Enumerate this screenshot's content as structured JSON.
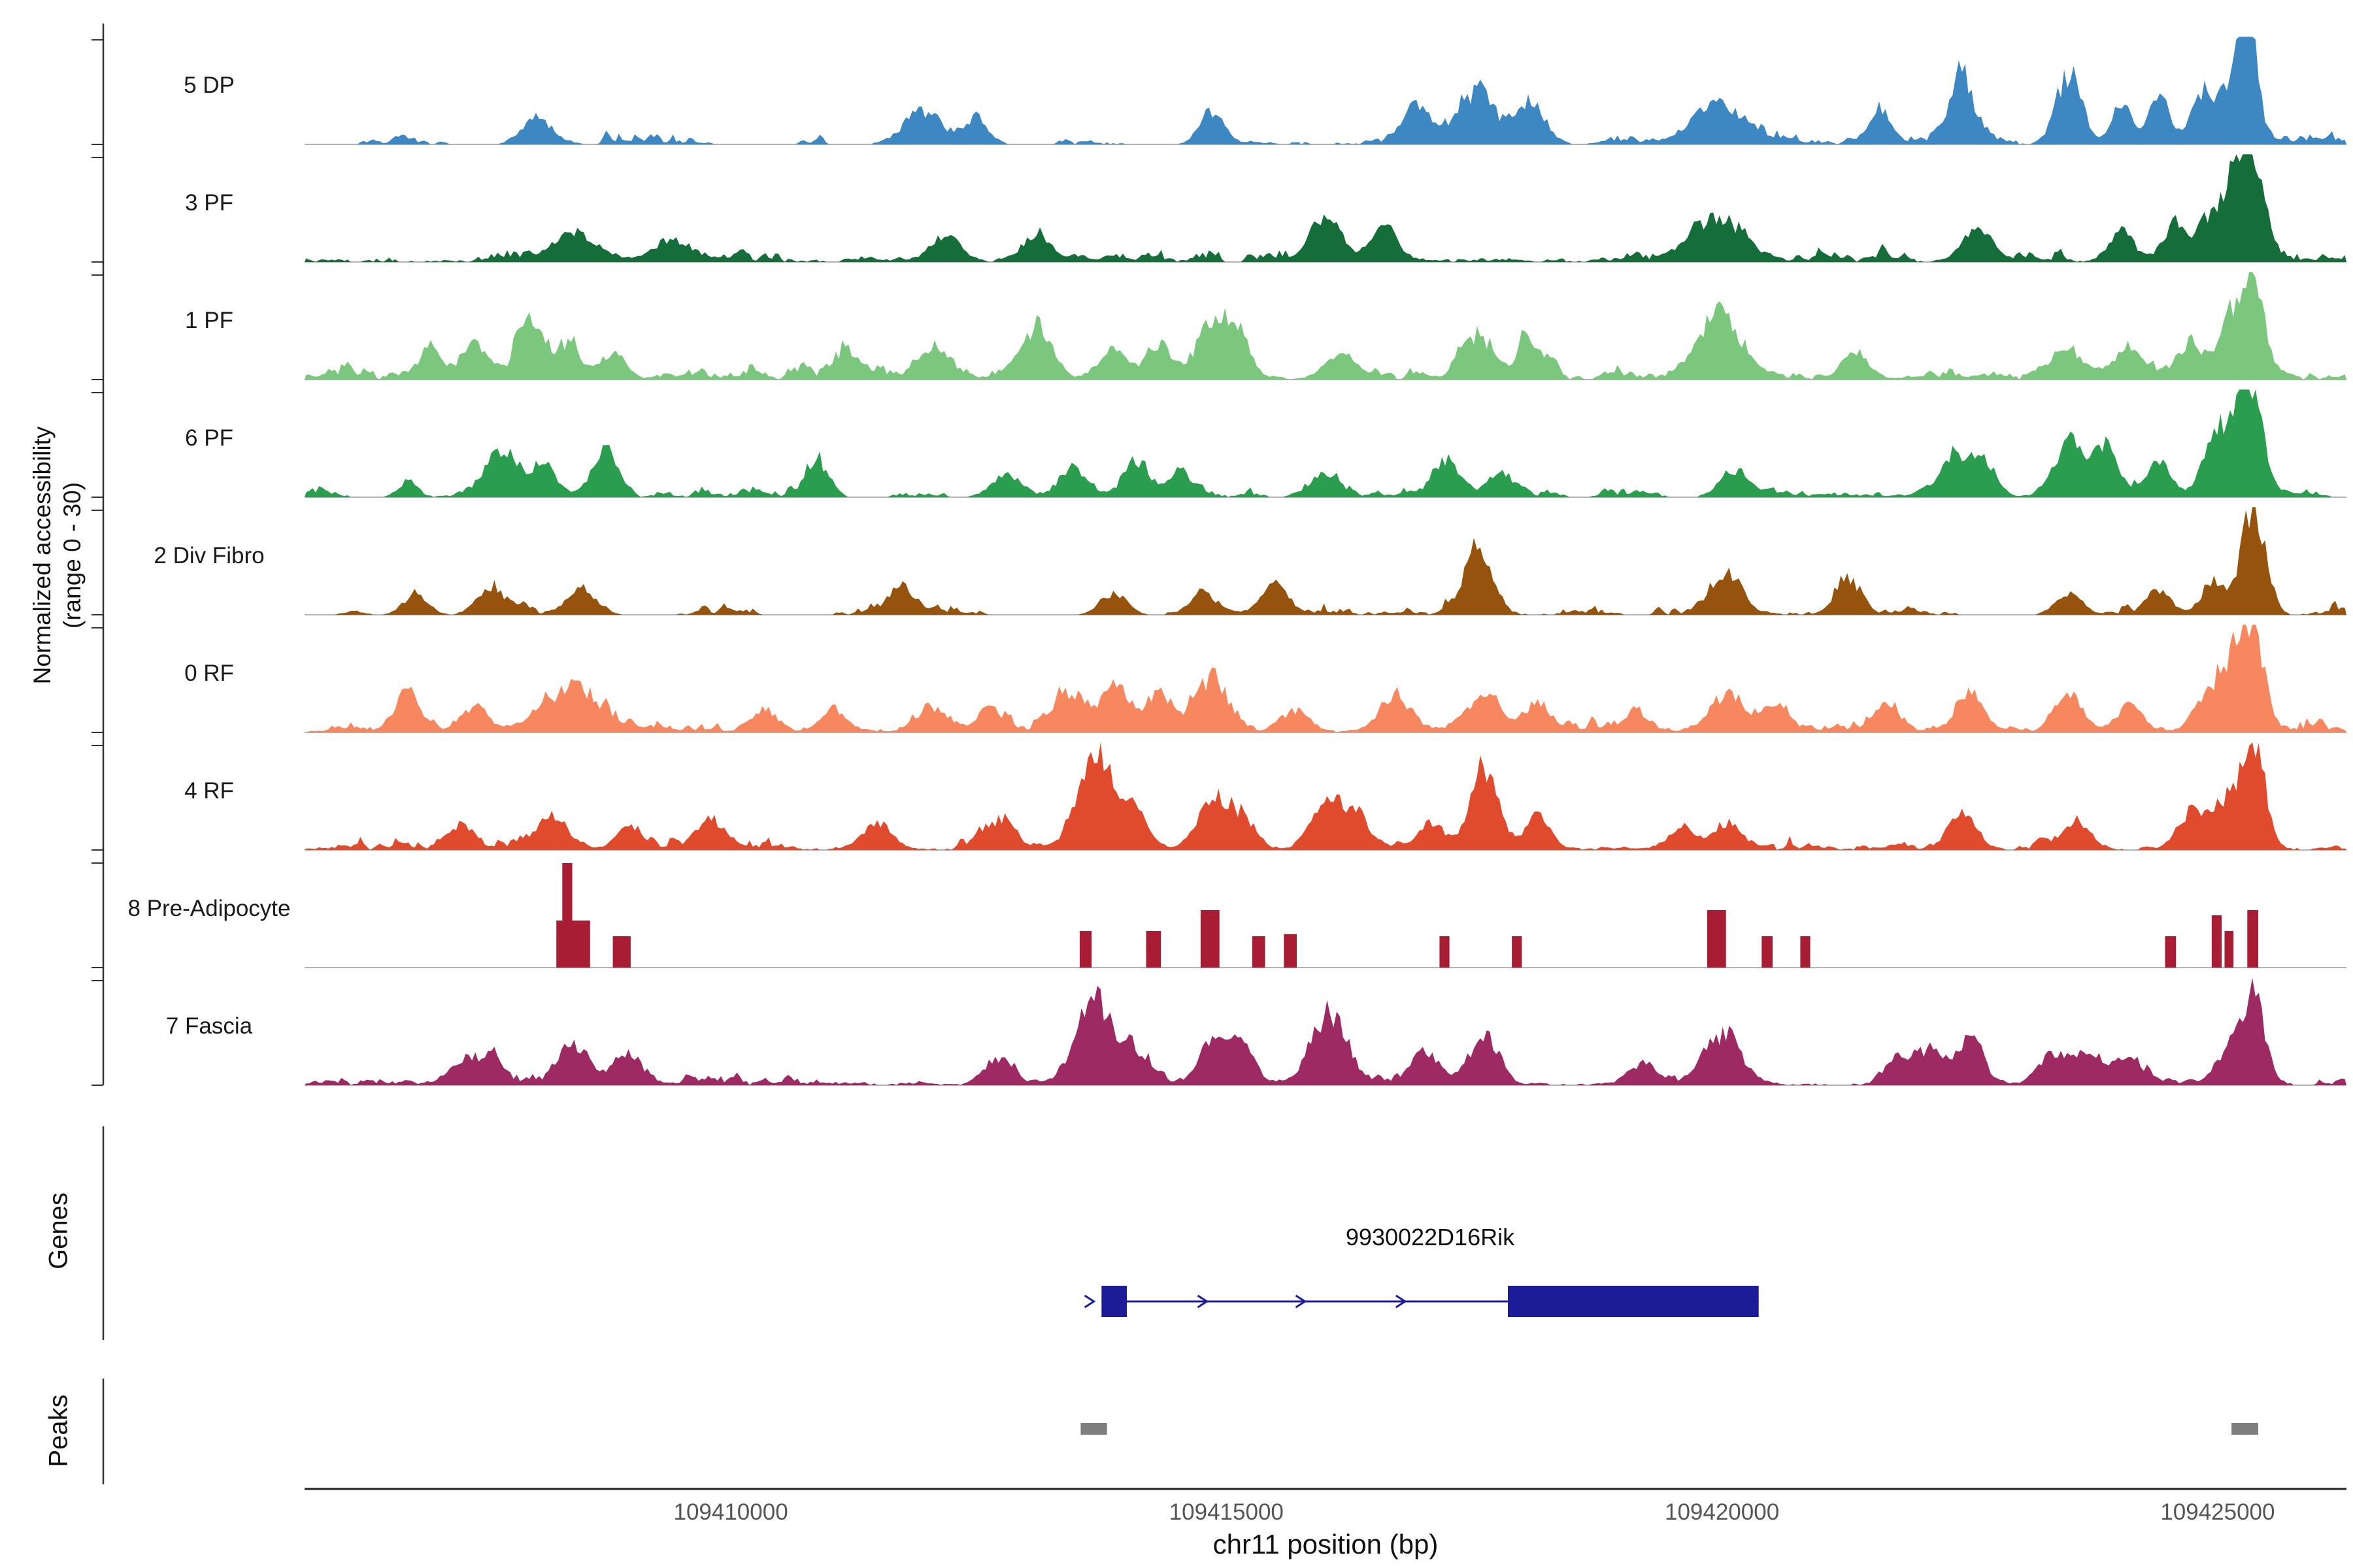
{
  "y_axis": {
    "title_line1": "Normalized accessibility",
    "title_line2": "(range 0 - 30)"
  },
  "sections": {
    "genes_label": "Genes",
    "peaks_label": "Peaks"
  },
  "x_axis": {
    "title": "chr11 position (bp)",
    "ticks": [
      {
        "pos": 109410000,
        "label": "109410000"
      },
      {
        "pos": 109415000,
        "label": "109415000"
      },
      {
        "pos": 109420000,
        "label": "109420000"
      },
      {
        "pos": 109425000,
        "label": "109425000"
      }
    ]
  },
  "chart_data": {
    "type": "area",
    "subtype": "genome-accessibility-tracks",
    "region": {
      "chrom": "chr11",
      "start": 109405700,
      "end": 109426300
    },
    "value_range": [
      0,
      30
    ],
    "tracks": [
      {
        "label": "5 DP",
        "color": "#3d87c2",
        "style": "area",
        "noise": 0.12,
        "dense": false,
        "peaks": [
          [
            109408040,
            0.25,
            150
          ],
          [
            109411940,
            0.3,
            200
          ],
          [
            109412480,
            0.25,
            120
          ],
          [
            109414850,
            0.3,
            120
          ],
          [
            109416920,
            0.32,
            150
          ],
          [
            109417530,
            0.45,
            180
          ],
          [
            109418060,
            0.4,
            150
          ],
          [
            109419930,
            0.38,
            250
          ],
          [
            109421580,
            0.25,
            120
          ],
          [
            109422420,
            0.6,
            120
          ],
          [
            109423500,
            0.65,
            130
          ],
          [
            109424030,
            0.35,
            100
          ],
          [
            109424410,
            0.4,
            100
          ],
          [
            109424870,
            0.5,
            120
          ],
          [
            109425180,
            0.7,
            100
          ],
          [
            109425330,
            0.95,
            90
          ]
        ]
      },
      {
        "label": "3 PF",
        "color": "#156d39",
        "style": "area",
        "noise": 0.14,
        "dense": true,
        "peaks": [
          [
            109408420,
            0.25,
            250
          ],
          [
            109409420,
            0.2,
            200
          ],
          [
            109412170,
            0.22,
            150
          ],
          [
            109413090,
            0.25,
            150
          ],
          [
            109416000,
            0.35,
            150
          ],
          [
            109416610,
            0.3,
            130
          ],
          [
            109419980,
            0.4,
            250
          ],
          [
            109422580,
            0.3,
            150
          ],
          [
            109424030,
            0.28,
            120
          ],
          [
            109424570,
            0.35,
            120
          ],
          [
            109424950,
            0.45,
            120
          ],
          [
            109425180,
            0.6,
            100
          ],
          [
            109425360,
            1.0,
            110
          ]
        ]
      },
      {
        "label": "1 PF",
        "color": "#7bc77d",
        "style": "area",
        "noise": 0.15,
        "dense": true,
        "peaks": [
          [
            109406970,
            0.25,
            120
          ],
          [
            109407430,
            0.3,
            120
          ],
          [
            109407970,
            0.42,
            150
          ],
          [
            109408350,
            0.3,
            120
          ],
          [
            109408810,
            0.25,
            120
          ],
          [
            109411180,
            0.2,
            150
          ],
          [
            109412020,
            0.25,
            150
          ],
          [
            109413090,
            0.45,
            150
          ],
          [
            109413860,
            0.3,
            130
          ],
          [
            109414320,
            0.3,
            130
          ],
          [
            109414850,
            0.5,
            150
          ],
          [
            109415110,
            0.4,
            120
          ],
          [
            109416150,
            0.25,
            150
          ],
          [
            109417530,
            0.4,
            150
          ],
          [
            109418060,
            0.3,
            130
          ],
          [
            109419980,
            0.6,
            220
          ],
          [
            109421350,
            0.25,
            130
          ],
          [
            109423500,
            0.25,
            150
          ],
          [
            109424110,
            0.3,
            120
          ],
          [
            109424720,
            0.35,
            120
          ],
          [
            109425100,
            0.5,
            110
          ],
          [
            109425360,
            0.95,
            110
          ]
        ]
      },
      {
        "label": "6 PF",
        "color": "#2a9d4e",
        "style": "area",
        "noise": 0.1,
        "dense": false,
        "peaks": [
          [
            109406740,
            0.15,
            100
          ],
          [
            109407690,
            0.45,
            150
          ],
          [
            109408120,
            0.3,
            120
          ],
          [
            109408730,
            0.4,
            130
          ],
          [
            109410870,
            0.3,
            120
          ],
          [
            109412780,
            0.2,
            150
          ],
          [
            109413470,
            0.25,
            130
          ],
          [
            109414090,
            0.35,
            130
          ],
          [
            109414540,
            0.25,
            120
          ],
          [
            109416000,
            0.2,
            150
          ],
          [
            109417220,
            0.3,
            130
          ],
          [
            109417760,
            0.2,
            120
          ],
          [
            109420130,
            0.2,
            150
          ],
          [
            109422350,
            0.4,
            130
          ],
          [
            109422650,
            0.35,
            120
          ],
          [
            109423500,
            0.5,
            140
          ],
          [
            109423880,
            0.45,
            130
          ],
          [
            109424410,
            0.3,
            120
          ],
          [
            109424950,
            0.5,
            120
          ],
          [
            109425180,
            0.6,
            100
          ],
          [
            109425360,
            0.85,
            110
          ]
        ]
      },
      {
        "label": "2 Div Fibro",
        "color": "#95530e",
        "style": "area",
        "noise": 0.12,
        "dense": false,
        "peaks": [
          [
            109406820,
            0.2,
            120
          ],
          [
            109407580,
            0.2,
            150
          ],
          [
            109408500,
            0.25,
            150
          ],
          [
            109411710,
            0.2,
            150
          ],
          [
            109413860,
            0.2,
            130
          ],
          [
            109414770,
            0.2,
            130
          ],
          [
            109415460,
            0.25,
            130
          ],
          [
            109417530,
            0.55,
            130
          ],
          [
            109420050,
            0.35,
            150
          ],
          [
            109421280,
            0.3,
            130
          ],
          [
            109423500,
            0.2,
            130
          ],
          [
            109424410,
            0.2,
            120
          ],
          [
            109424950,
            0.3,
            120
          ],
          [
            109425360,
            1.0,
            120
          ]
        ]
      },
      {
        "label": "0 RF",
        "color": "#f6875f",
        "style": "area",
        "noise": 0.15,
        "dense": true,
        "peaks": [
          [
            109406740,
            0.35,
            130
          ],
          [
            109407430,
            0.2,
            130
          ],
          [
            109408380,
            0.4,
            280
          ],
          [
            109410340,
            0.2,
            130
          ],
          [
            109411030,
            0.2,
            130
          ],
          [
            109412020,
            0.2,
            140
          ],
          [
            109412630,
            0.2,
            130
          ],
          [
            109413400,
            0.35,
            150
          ],
          [
            109413860,
            0.35,
            140
          ],
          [
            109414320,
            0.3,
            130
          ],
          [
            109414850,
            0.45,
            160
          ],
          [
            109415690,
            0.2,
            140
          ],
          [
            109416690,
            0.3,
            140
          ],
          [
            109417600,
            0.35,
            150
          ],
          [
            109418140,
            0.25,
            130
          ],
          [
            109419130,
            0.2,
            130
          ],
          [
            109420050,
            0.35,
            160
          ],
          [
            109420510,
            0.25,
            130
          ],
          [
            109421660,
            0.2,
            130
          ],
          [
            109422500,
            0.35,
            140
          ],
          [
            109423500,
            0.35,
            140
          ],
          [
            109424110,
            0.25,
            130
          ],
          [
            109424950,
            0.4,
            130
          ],
          [
            109425180,
            0.55,
            110
          ],
          [
            109425360,
            0.9,
            110
          ]
        ]
      },
      {
        "label": "4 RF",
        "color": "#e04b2e",
        "style": "area",
        "noise": 0.13,
        "dense": true,
        "peaks": [
          [
            109407280,
            0.22,
            140
          ],
          [
            109408200,
            0.3,
            160
          ],
          [
            109408960,
            0.2,
            130
          ],
          [
            109409800,
            0.28,
            150
          ],
          [
            109411480,
            0.25,
            140
          ],
          [
            109412710,
            0.28,
            140
          ],
          [
            109413670,
            0.8,
            180
          ],
          [
            109414090,
            0.3,
            130
          ],
          [
            109414850,
            0.45,
            150
          ],
          [
            109415160,
            0.3,
            130
          ],
          [
            109416000,
            0.45,
            140
          ],
          [
            109416300,
            0.3,
            130
          ],
          [
            109417070,
            0.25,
            130
          ],
          [
            109417600,
            0.75,
            140
          ],
          [
            109418140,
            0.3,
            130
          ],
          [
            109419590,
            0.2,
            130
          ],
          [
            109420050,
            0.25,
            140
          ],
          [
            109422420,
            0.35,
            140
          ],
          [
            109423570,
            0.25,
            140
          ],
          [
            109424720,
            0.3,
            130
          ],
          [
            109425030,
            0.35,
            120
          ],
          [
            109425260,
            0.55,
            110
          ],
          [
            109425410,
            0.65,
            100
          ]
        ]
      },
      {
        "label": "8 Pre-Adipocyte",
        "color": "#a81d33",
        "style": "blocks",
        "noise": 0,
        "dense": false,
        "peaks": [],
        "blocks": [
          [
            109408240,
            109408580,
            0.45
          ],
          [
            109408300,
            109408400,
            1.0
          ],
          [
            109408810,
            109408990,
            0.3
          ],
          [
            109413520,
            109413640,
            0.35
          ],
          [
            109414190,
            109414340,
            0.35
          ],
          [
            109414740,
            109414930,
            0.55
          ],
          [
            109415260,
            109415390,
            0.3
          ],
          [
            109415580,
            109415710,
            0.32
          ],
          [
            109417150,
            109417250,
            0.3
          ],
          [
            109417880,
            109417980,
            0.3
          ],
          [
            109419850,
            109420040,
            0.55
          ],
          [
            109420400,
            109420510,
            0.3
          ],
          [
            109420790,
            109420890,
            0.3
          ],
          [
            109424470,
            109424580,
            0.3
          ],
          [
            109424940,
            109425040,
            0.5
          ],
          [
            109425070,
            109425160,
            0.35
          ],
          [
            109425300,
            109425410,
            0.55
          ]
        ]
      },
      {
        "label": "7 Fascia",
        "color": "#9d2a63",
        "style": "area",
        "noise": 0.12,
        "dense": true,
        "peaks": [
          [
            109407280,
            0.2,
            130
          ],
          [
            109407580,
            0.25,
            130
          ],
          [
            109408420,
            0.35,
            150
          ],
          [
            109408960,
            0.3,
            140
          ],
          [
            109412710,
            0.25,
            140
          ],
          [
            109413670,
            0.75,
            190
          ],
          [
            109414090,
            0.25,
            130
          ],
          [
            109414850,
            0.35,
            140
          ],
          [
            109415160,
            0.3,
            130
          ],
          [
            109416030,
            0.65,
            180
          ],
          [
            109417000,
            0.3,
            140
          ],
          [
            109417600,
            0.45,
            150
          ],
          [
            109419210,
            0.2,
            130
          ],
          [
            109420010,
            0.45,
            180
          ],
          [
            109421810,
            0.25,
            130
          ],
          [
            109422120,
            0.3,
            130
          ],
          [
            109422500,
            0.4,
            140
          ],
          [
            109423340,
            0.3,
            140
          ],
          [
            109423720,
            0.25,
            130
          ],
          [
            109424110,
            0.25,
            130
          ],
          [
            109425100,
            0.3,
            120
          ],
          [
            109425360,
            0.9,
            110
          ]
        ]
      }
    ],
    "gene": {
      "name": "9930022D16Rik",
      "color": "#1c1c99",
      "strand": "+",
      "start": 109413740,
      "end": 109420370,
      "exons": [
        {
          "start": 109413740,
          "end": 109413995
        },
        {
          "start": 109417840,
          "end": 109420370
        }
      ],
      "arrows": [
        109413630,
        109414770,
        109415760,
        109416770
      ]
    },
    "peaks": {
      "color": "#7f7f7f",
      "regions": [
        {
          "start": 109413530,
          "end": 109413795
        },
        {
          "start": 109425140,
          "end": 109425410
        }
      ]
    }
  }
}
